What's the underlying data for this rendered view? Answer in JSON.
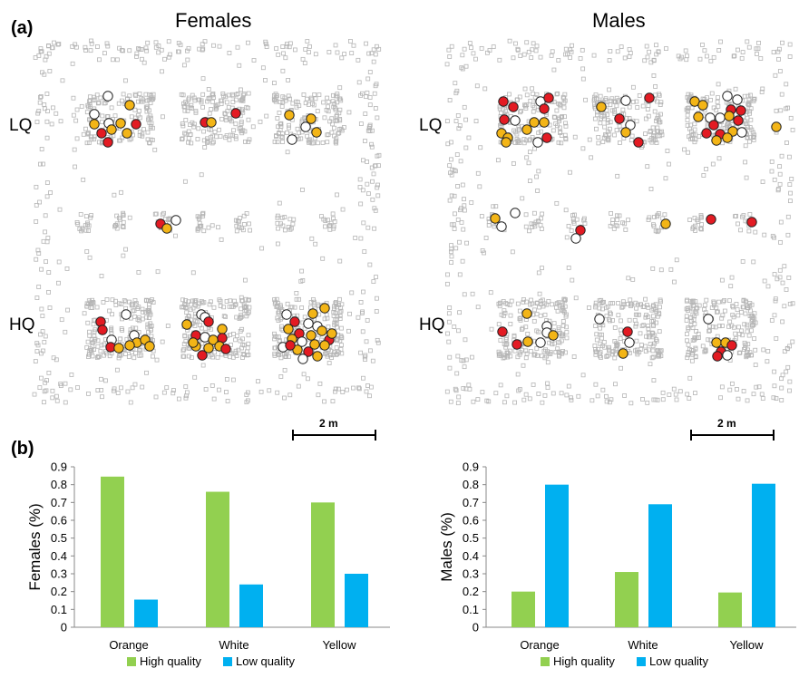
{
  "panel_a": {
    "label": "(a)",
    "maps": [
      {
        "title": "Females",
        "row_labels": [
          "LQ",
          "HQ"
        ],
        "scale_label": "2 m"
      },
      {
        "title": "Males",
        "row_labels": [
          "LQ",
          "HQ"
        ],
        "scale_label": "2 m"
      }
    ],
    "marker_colors": {
      "orange": "#f3b517",
      "white": "#ffffff",
      "red": "#e31b23",
      "background_points": "#b5b5b5"
    }
  },
  "panel_b": {
    "label": "(b)"
  },
  "colors": {
    "high_quality": "#92d050",
    "low_quality": "#00b0f0",
    "axis": "#888888"
  },
  "chart_data": [
    {
      "type": "bar",
      "ylabel": "Females (%)",
      "categories": [
        "Orange",
        "White",
        "Yellow"
      ],
      "ylim": [
        0,
        0.9
      ],
      "yticks": [
        "0",
        "0.1",
        "0.2",
        "0.3",
        "0.4",
        "0.5",
        "0.6",
        "0.7",
        "0.8",
        "0.9"
      ],
      "series": [
        {
          "name": "High quality",
          "values": [
            0.845,
            0.76,
            0.7
          ]
        },
        {
          "name": "Low quality",
          "values": [
            0.155,
            0.24,
            0.3
          ]
        }
      ],
      "legend": "bottom",
      "grid": false
    },
    {
      "type": "bar",
      "ylabel": "Males (%)",
      "categories": [
        "Orange",
        "White",
        "Yellow"
      ],
      "ylim": [
        0,
        0.9
      ],
      "yticks": [
        "0",
        "0.1",
        "0.2",
        "0.3",
        "0.4",
        "0.5",
        "0.6",
        "0.7",
        "0.8",
        "0.9"
      ],
      "series": [
        {
          "name": "High quality",
          "values": [
            0.2,
            0.31,
            0.195
          ]
        },
        {
          "name": "Low quality",
          "values": [
            0.8,
            0.69,
            0.805
          ]
        }
      ],
      "legend": "bottom",
      "grid": false
    }
  ]
}
